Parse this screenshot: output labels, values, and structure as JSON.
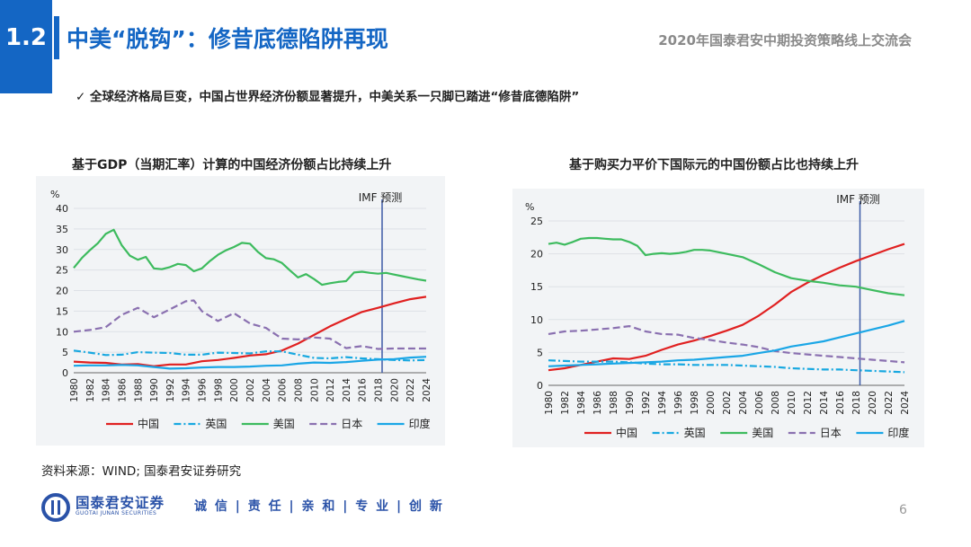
{
  "section": "1.2",
  "title": "中美“脱钩”：修昔底德陷阱再现",
  "event": "2020年国泰君安中期投资策略线上交流会",
  "bullet": "全球经济格局巨变，中国占世界经济份额显著提升，中美关系一只脚已踏进“修昔底德陷阱”",
  "bullet_mark": "✓",
  "source": "资料来源：WIND; 国泰君安证券研究",
  "logo": {
    "name": "国泰君安证券",
    "en": "GUOTAI JUNAN SECURITIES"
  },
  "slogan": "诚 信 | 责 任 | 亲 和 | 专 业 | 创 新",
  "page_number": "6",
  "colors": {
    "brand": "#1466c4",
    "china": "#e02020",
    "uk": "#18a8e0",
    "us": "#3dbb5e",
    "japan": "#8a70b0",
    "india": "#1aa6e6",
    "forecast_line": "#3c5aa6"
  },
  "chart_data": [
    {
      "type": "line",
      "title": "基于GDP（当期汇率）计算的中国经济份额占比持续上升",
      "ylabel": "%",
      "ylim": [
        0,
        40
      ],
      "yticks": [
        0,
        5,
        10,
        15,
        20,
        25,
        30,
        35,
        40
      ],
      "xlim": [
        1980,
        2024
      ],
      "xticks": [
        1980,
        1982,
        1984,
        1986,
        1988,
        1990,
        1992,
        1994,
        1996,
        1998,
        2000,
        2002,
        2004,
        2006,
        2008,
        2010,
        2012,
        2014,
        2016,
        2018,
        2020,
        2022,
        2024
      ],
      "forecast_year": 2018.5,
      "annotation": "IMF 预测",
      "legend": "bottom",
      "grid": true,
      "series": [
        {
          "name": "中国",
          "style": "solid",
          "color": "#e02020",
          "x": [
            1980,
            1982,
            1984,
            1986,
            1988,
            1990,
            1992,
            1994,
            1996,
            1998,
            2000,
            2002,
            2004,
            2006,
            2008,
            2010,
            2012,
            2014,
            2016,
            2018,
            2020,
            2022,
            2024
          ],
          "y": [
            2.7,
            2.5,
            2.4,
            2.0,
            2.1,
            1.6,
            2.0,
            2.0,
            2.8,
            3.1,
            3.6,
            4.2,
            4.5,
            5.4,
            7.1,
            9.2,
            11.3,
            13.1,
            14.8,
            15.8,
            16.9,
            17.9,
            18.5
          ]
        },
        {
          "name": "英国",
          "style": "dashdot",
          "color": "#18a8e0",
          "x": [
            1980,
            1982,
            1984,
            1986,
            1988,
            1990,
            1992,
            1994,
            1996,
            1998,
            2000,
            2002,
            2004,
            2006,
            2008,
            2010,
            2012,
            2014,
            2016,
            2018,
            2020,
            2022,
            2024
          ],
          "y": [
            5.4,
            4.9,
            4.3,
            4.4,
            5.0,
            4.9,
            4.8,
            4.4,
            4.4,
            4.9,
            4.8,
            4.7,
            5.2,
            5.2,
            4.4,
            3.6,
            3.5,
            3.8,
            3.5,
            3.3,
            3.1,
            3.0,
            3.1
          ]
        },
        {
          "name": "美国",
          "style": "solid",
          "color": "#3dbb5e",
          "x": [
            1980,
            1981,
            1982,
            1983,
            1984,
            1985,
            1986,
            1987,
            1988,
            1989,
            1990,
            1991,
            1992,
            1993,
            1994,
            1995,
            1996,
            1997,
            1998,
            1999,
            2000,
            2001,
            2002,
            2003,
            2004,
            2005,
            2006,
            2007,
            2008,
            2009,
            2010,
            2011,
            2012,
            2013,
            2014,
            2015,
            2016,
            2017,
            2018,
            2019,
            2020,
            2021,
            2022,
            2023,
            2024
          ],
          "y": [
            25.5,
            27.9,
            29.8,
            31.5,
            33.8,
            34.8,
            31.0,
            28.5,
            27.5,
            28.2,
            25.4,
            25.2,
            25.7,
            26.5,
            26.2,
            24.7,
            25.4,
            27.2,
            28.7,
            29.8,
            30.6,
            31.6,
            31.4,
            29.4,
            27.9,
            27.6,
            26.7,
            24.9,
            23.2,
            24.0,
            22.8,
            21.4,
            21.8,
            22.1,
            22.3,
            24.4,
            24.6,
            24.3,
            24.1,
            24.3,
            23.9,
            23.5,
            23.1,
            22.7,
            22.4
          ]
        },
        {
          "name": "日本",
          "style": "dashed",
          "color": "#8a70b0",
          "x": [
            1980,
            1982,
            1984,
            1986,
            1988,
            1990,
            1992,
            1994,
            1995,
            1996,
            1998,
            2000,
            2002,
            2004,
            2006,
            2008,
            2010,
            2012,
            2014,
            2016,
            2018,
            2020,
            2022,
            2024
          ],
          "y": [
            10.0,
            10.4,
            11.1,
            14.1,
            15.8,
            13.5,
            15.4,
            17.4,
            17.6,
            15.0,
            12.6,
            14.5,
            12.0,
            10.9,
            8.3,
            8.1,
            8.6,
            8.3,
            6.0,
            6.5,
            5.8,
            5.9,
            5.9,
            5.9
          ]
        },
        {
          "name": "印度",
          "style": "solid",
          "color": "#1aa6e6",
          "x": [
            1980,
            1982,
            1984,
            1986,
            1988,
            1990,
            1992,
            1994,
            1996,
            1998,
            2000,
            2002,
            2004,
            2006,
            2008,
            2010,
            2012,
            2014,
            2016,
            2018,
            2020,
            2022,
            2024
          ],
          "y": [
            1.7,
            1.8,
            1.8,
            1.9,
            1.8,
            1.4,
            1.0,
            1.1,
            1.3,
            1.4,
            1.4,
            1.5,
            1.7,
            1.8,
            2.2,
            2.5,
            2.4,
            2.6,
            2.9,
            3.2,
            3.3,
            3.7,
            3.9
          ]
        }
      ]
    },
    {
      "type": "line",
      "title": "基于购买力平价下国际元的中国份额占比也持续上升",
      "ylabel": "%",
      "ylim": [
        0,
        25
      ],
      "yticks": [
        0,
        5,
        10,
        15,
        20,
        25
      ],
      "xlim": [
        1980,
        2024
      ],
      "xticks": [
        1980,
        1982,
        1984,
        1986,
        1988,
        1990,
        1992,
        1994,
        1996,
        1998,
        2000,
        2002,
        2004,
        2006,
        2008,
        2010,
        2012,
        2014,
        2016,
        2018,
        2020,
        2022,
        2024
      ],
      "forecast_year": 2018.5,
      "annotation": "IMF 预测",
      "legend": "bottom",
      "grid": true,
      "series": [
        {
          "name": "中国",
          "style": "solid",
          "color": "#e02020",
          "x": [
            1980,
            1982,
            1984,
            1986,
            1988,
            1990,
            1992,
            1994,
            1996,
            1998,
            2000,
            2002,
            2004,
            2006,
            2008,
            2010,
            2012,
            2014,
            2016,
            2018,
            2020,
            2022,
            2024
          ],
          "y": [
            2.3,
            2.6,
            3.1,
            3.6,
            4.1,
            4.0,
            4.5,
            5.4,
            6.2,
            6.8,
            7.5,
            8.3,
            9.2,
            10.6,
            12.3,
            14.2,
            15.6,
            16.8,
            17.9,
            18.9,
            19.8,
            20.7,
            21.5
          ]
        },
        {
          "name": "英国",
          "style": "dashdot",
          "color": "#18a8e0",
          "x": [
            1980,
            1982,
            1984,
            1986,
            1988,
            1990,
            1992,
            1994,
            1996,
            1998,
            2000,
            2002,
            2004,
            2006,
            2008,
            2010,
            2012,
            2014,
            2016,
            2018,
            2020,
            2022,
            2024
          ],
          "y": [
            3.8,
            3.7,
            3.6,
            3.6,
            3.6,
            3.5,
            3.3,
            3.2,
            3.2,
            3.1,
            3.1,
            3.1,
            3.0,
            2.9,
            2.8,
            2.6,
            2.5,
            2.4,
            2.4,
            2.3,
            2.2,
            2.1,
            2.0
          ]
        },
        {
          "name": "美国",
          "style": "solid",
          "color": "#3dbb5e",
          "x": [
            1980,
            1981,
            1982,
            1983,
            1984,
            1985,
            1986,
            1987,
            1988,
            1989,
            1990,
            1991,
            1992,
            1993,
            1994,
            1995,
            1996,
            1997,
            1998,
            1999,
            2000,
            2002,
            2004,
            2006,
            2008,
            2010,
            2012,
            2014,
            2016,
            2018,
            2020,
            2022,
            2024
          ],
          "y": [
            21.5,
            21.7,
            21.4,
            21.8,
            22.3,
            22.4,
            22.4,
            22.3,
            22.2,
            22.2,
            21.8,
            21.2,
            19.8,
            20.0,
            20.1,
            20.0,
            20.1,
            20.3,
            20.6,
            20.6,
            20.5,
            20.0,
            19.5,
            18.4,
            17.2,
            16.3,
            15.9,
            15.6,
            15.2,
            15.0,
            14.5,
            14.0,
            13.7
          ]
        },
        {
          "name": "日本",
          "style": "dashed",
          "color": "#8a70b0",
          "x": [
            1980,
            1982,
            1984,
            1986,
            1988,
            1990,
            1992,
            1994,
            1996,
            1998,
            2000,
            2002,
            2004,
            2006,
            2008,
            2010,
            2012,
            2014,
            2016,
            2018,
            2020,
            2022,
            2024
          ],
          "y": [
            7.8,
            8.2,
            8.3,
            8.5,
            8.7,
            9.0,
            8.2,
            7.8,
            7.7,
            7.2,
            6.9,
            6.5,
            6.2,
            5.8,
            5.2,
            4.9,
            4.7,
            4.5,
            4.3,
            4.1,
            3.9,
            3.7,
            3.5
          ]
        },
        {
          "name": "印度",
          "style": "solid",
          "color": "#1aa6e6",
          "x": [
            1980,
            1982,
            1984,
            1986,
            1988,
            1990,
            1992,
            1994,
            1996,
            1998,
            2000,
            2002,
            2004,
            2006,
            2008,
            2010,
            2012,
            2014,
            2016,
            2018,
            2020,
            2022,
            2024
          ],
          "y": [
            2.9,
            3.0,
            3.1,
            3.2,
            3.3,
            3.4,
            3.5,
            3.6,
            3.8,
            3.9,
            4.1,
            4.3,
            4.5,
            4.9,
            5.3,
            5.9,
            6.3,
            6.7,
            7.3,
            7.9,
            8.5,
            9.1,
            9.8
          ]
        }
      ]
    }
  ]
}
